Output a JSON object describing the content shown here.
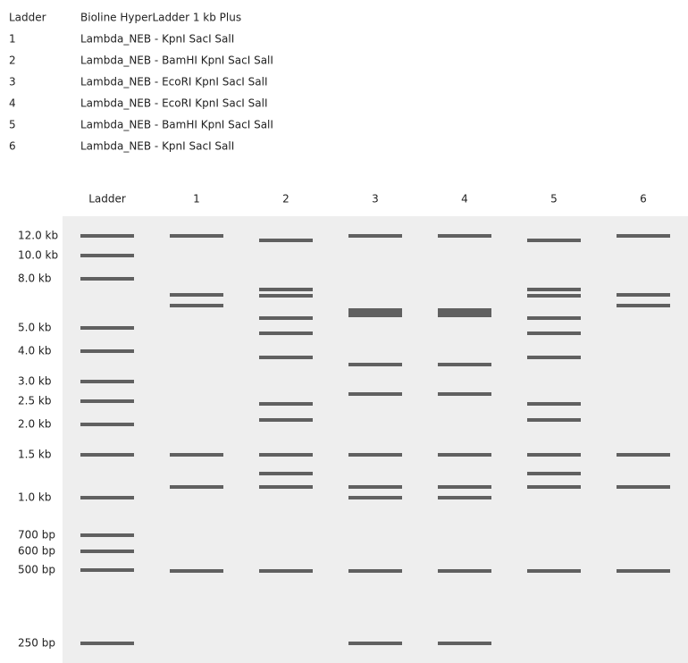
{
  "legend": [
    {
      "lane": "Ladder",
      "description": "Bioline HyperLadder 1 kb Plus"
    },
    {
      "lane": "1",
      "description": "Lambda_NEB - KpnI SacI SalI"
    },
    {
      "lane": "2",
      "description": "Lambda_NEB - BamHI KpnI SacI SalI"
    },
    {
      "lane": "3",
      "description": "Lambda_NEB - EcoRI KpnI SacI SalI"
    },
    {
      "lane": "4",
      "description": "Lambda_NEB - EcoRI KpnI SacI SalI"
    },
    {
      "lane": "5",
      "description": "Lambda_NEB - BamHI KpnI SacI SalI"
    },
    {
      "lane": "6",
      "description": "Lambda_NEB - KpnI SacI SalI"
    }
  ],
  "lanes": [
    "Ladder",
    "1",
    "2",
    "3",
    "4",
    "5",
    "6"
  ],
  "ladder_labels": [
    "12.0 kb",
    "10.0 kb",
    "8.0 kb",
    "5.0 kb",
    "4.0 kb",
    "3.0 kb",
    "2.5 kb",
    "2.0 kb",
    "1.5 kb",
    "1.0 kb",
    "700 bp",
    "600 bp",
    "500 bp",
    "250 bp"
  ]
}
